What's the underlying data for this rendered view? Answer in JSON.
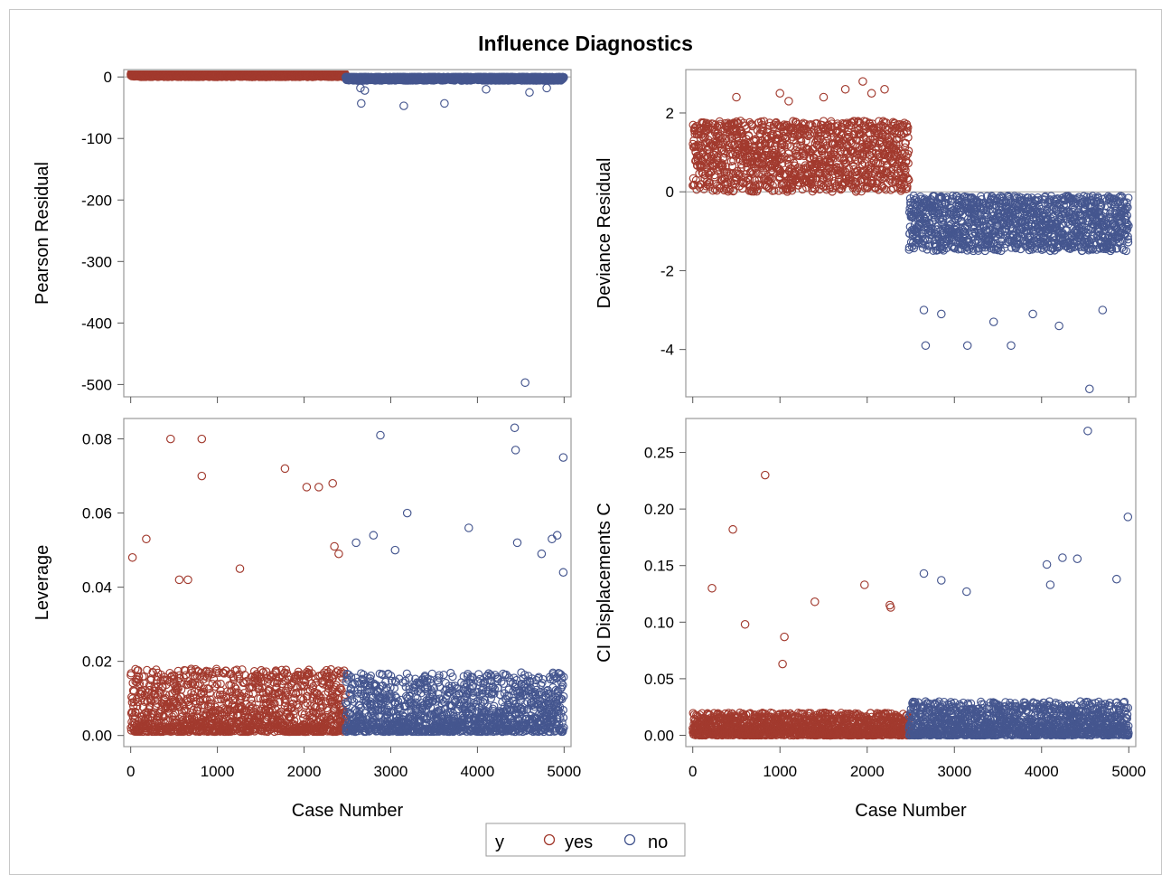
{
  "colors": {
    "yes": "#a23a2e",
    "no": "#45568f",
    "frame": "#9a9a9a",
    "refline": "#a0a0a0"
  },
  "chart_data": {
    "title": "Influence Diagnostics",
    "legend": {
      "title": "y",
      "placement": "bottom-center",
      "entries": [
        "yes",
        "no"
      ]
    },
    "panels": [
      {
        "type": "scatter",
        "ylabel": "Pearson Residual",
        "xlabel": "",
        "xlim": [
          -80,
          5080
        ],
        "ylim": [
          -520,
          12
        ],
        "xticks": [
          0,
          1000,
          2000,
          3000,
          4000,
          5000
        ],
        "yticks": [
          0,
          -100,
          -200,
          -300,
          -400,
          -500
        ],
        "xtick_labels": [],
        "reference_line_y": 0,
        "series": [
          {
            "name": "yes",
            "n": 2480,
            "band": [
              0,
              7
            ],
            "jitter": "uniform",
            "x": [
              1000,
              1995,
              2050,
              2360
            ],
            "y": [
              4,
              6,
              4,
              5
            ]
          },
          {
            "name": "no",
            "n": 2520,
            "band": [
              -6,
              0
            ],
            "jitter": "skew",
            "x": [
              2650,
              2660,
              3150,
              3620,
              4550,
              2700,
              4100,
              4600,
              4800
            ],
            "y": [
              -18,
              -43,
              -47,
              -43,
              -497,
              -22,
              -20,
              -25,
              -18
            ]
          }
        ]
      },
      {
        "type": "scatter",
        "ylabel": "Deviance Residual",
        "xlabel": "",
        "xlim": [
          -80,
          5080
        ],
        "ylim": [
          -5.2,
          3.1
        ],
        "xticks": [
          0,
          1000,
          2000,
          3000,
          4000,
          5000
        ],
        "yticks": [
          2,
          0,
          -2,
          -4
        ],
        "xtick_labels": [],
        "reference_line_y": 0,
        "series": [
          {
            "name": "yes",
            "n": 2480,
            "band": [
              0,
              1.8
            ],
            "jitter": "uniform",
            "x": [
              1000,
              1500,
              1750,
              1950,
              2050,
              2200,
              1100,
              500
            ],
            "y": [
              2.5,
              2.4,
              2.6,
              2.8,
              2.5,
              2.6,
              2.3,
              2.4
            ]
          },
          {
            "name": "no",
            "n": 2520,
            "band": [
              -1.5,
              -0.1
            ],
            "jitter": "uniform",
            "x": [
              2650,
              2670,
              2850,
              3150,
              3450,
              3650,
              3900,
              4200,
              4550,
              4700
            ],
            "y": [
              -3.0,
              -3.9,
              -3.1,
              -3.9,
              -3.3,
              -3.9,
              -3.1,
              -3.4,
              -5.0,
              -3.0
            ]
          }
        ]
      },
      {
        "type": "scatter",
        "ylabel": "Leverage",
        "xlabel": "Case Number",
        "xlim": [
          -80,
          5080
        ],
        "ylim": [
          -0.003,
          0.0855
        ],
        "xticks": [
          0,
          1000,
          2000,
          3000,
          4000,
          5000
        ],
        "yticks": [
          0.0,
          0.02,
          0.04,
          0.06,
          0.08
        ],
        "xtick_labels": [
          "0",
          "1000",
          "2000",
          "3000",
          "4000",
          "5000"
        ],
        "ytick_labels": [
          "0.00",
          "0.02",
          "0.04",
          "0.06",
          "0.08"
        ],
        "series": [
          {
            "name": "yes",
            "n": 2480,
            "band": [
              0.001,
              0.018
            ],
            "jitter": "skew",
            "x": [
              20,
              180,
              460,
              820,
              820,
              1260,
              1780,
              2030,
              2170,
              2330,
              2350,
              2400,
              560,
              660
            ],
            "y": [
              0.048,
              0.053,
              0.08,
              0.08,
              0.07,
              0.045,
              0.072,
              0.067,
              0.067,
              0.068,
              0.051,
              0.049,
              0.042,
              0.042
            ]
          },
          {
            "name": "no",
            "n": 2520,
            "band": [
              0.001,
              0.017
            ],
            "jitter": "skew",
            "x": [
              2880,
              3190,
              3050,
              3900,
              4430,
              4440,
              4460,
              4990,
              4990,
              4860,
              4920,
              4740,
              2800,
              2600
            ],
            "y": [
              0.081,
              0.06,
              0.05,
              0.056,
              0.083,
              0.077,
              0.052,
              0.075,
              0.044,
              0.053,
              0.054,
              0.049,
              0.054,
              0.052
            ]
          }
        ]
      },
      {
        "type": "scatter",
        "ylabel": "CI Displacements C",
        "xlabel": "Case Number",
        "xlim": [
          -80,
          5080
        ],
        "ylim": [
          -0.01,
          0.28
        ],
        "xticks": [
          0,
          1000,
          2000,
          3000,
          4000,
          5000
        ],
        "yticks": [
          0.0,
          0.05,
          0.1,
          0.15,
          0.2,
          0.25
        ],
        "xtick_labels": [
          "0",
          "1000",
          "2000",
          "3000",
          "4000",
          "5000"
        ],
        "ytick_labels": [
          "0.00",
          "0.05",
          "0.10",
          "0.15",
          "0.20",
          "0.25"
        ],
        "series": [
          {
            "name": "yes",
            "n": 2480,
            "band": [
              0,
              0.02
            ],
            "jitter": "skew",
            "x": [
              220,
              460,
              830,
              1050,
              1970,
              2260,
              2270,
              600,
              1030,
              1400
            ],
            "y": [
              0.13,
              0.182,
              0.23,
              0.087,
              0.133,
              0.115,
              0.113,
              0.098,
              0.063,
              0.118
            ]
          },
          {
            "name": "no",
            "n": 2520,
            "band": [
              0,
              0.03
            ],
            "jitter": "skew",
            "x": [
              4530,
              4990,
              4240,
              4410,
              4060,
              4100,
              4860,
              2650,
              2850,
              3140
            ],
            "y": [
              0.269,
              0.193,
              0.157,
              0.156,
              0.151,
              0.133,
              0.138,
              0.143,
              0.137,
              0.127
            ]
          }
        ]
      }
    ]
  }
}
